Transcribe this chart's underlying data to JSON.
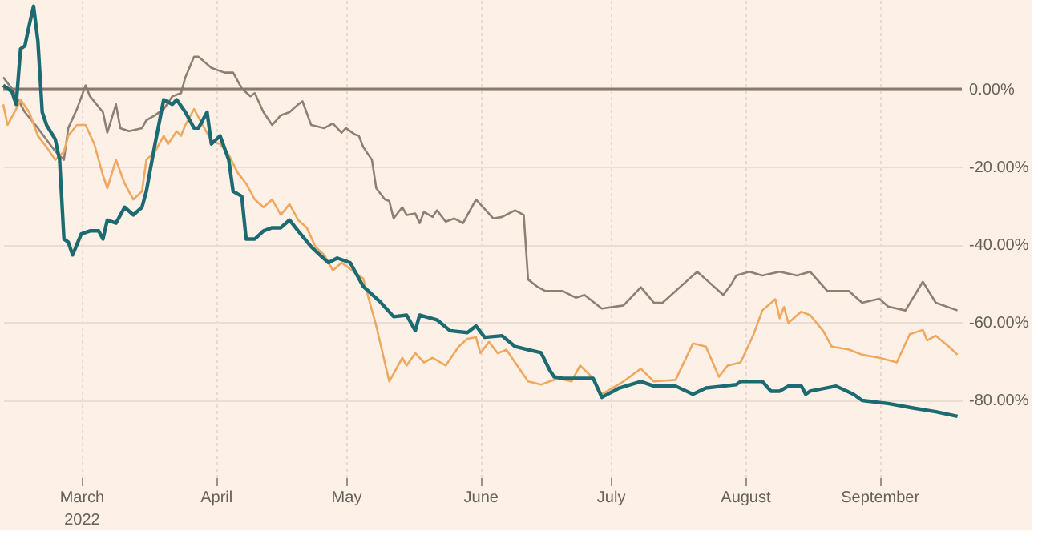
{
  "chart_data": {
    "type": "line",
    "xlim": [
      "2022-02-11",
      "2022-09-20"
    ],
    "xticks": [
      {
        "value": "2022-03-01",
        "label": "March 2022"
      },
      {
        "value": "2022-04-01",
        "label": "April"
      },
      {
        "value": "2022-05-01",
        "label": "May"
      },
      {
        "value": "2022-06-01",
        "label": "June"
      },
      {
        "value": "2022-07-01",
        "label": "July"
      },
      {
        "value": "2022-08-01",
        "label": "August"
      },
      {
        "value": "2022-09-01",
        "label": "September"
      }
    ],
    "ylim": [
      -100,
      23
    ],
    "yticks": [
      {
        "value": 0,
        "label": "0.00%"
      },
      {
        "value": -20,
        "label": "-20.00%"
      },
      {
        "value": -40,
        "label": "-40.00%"
      },
      {
        "value": -60,
        "label": "-60.00%"
      },
      {
        "value": -80,
        "label": "-80.00%"
      }
    ],
    "grid": true,
    "legend": false,
    "marker": "none",
    "line_style": "solid",
    "ref_lines": [
      {
        "axis": "y",
        "value": 0,
        "color": "#8a7a6e"
      }
    ],
    "series": [
      {
        "color": "#8f7f72",
        "x": [
          "2022-02-11",
          "2022-02-13",
          "2022-02-14",
          "2022-02-16",
          "2022-02-19",
          "2022-02-23",
          "2022-02-25",
          "2022-02-26",
          "2022-02-28",
          "2022-03-02",
          "2022-03-03",
          "2022-03-06",
          "2022-03-07",
          "2022-03-09",
          "2022-03-10",
          "2022-03-12",
          "2022-03-15",
          "2022-03-16",
          "2022-03-18",
          "2022-03-20",
          "2022-03-22",
          "2022-03-24",
          "2022-03-25",
          "2022-03-27",
          "2022-03-28",
          "2022-03-31",
          "2022-04-03",
          "2022-04-05",
          "2022-04-07",
          "2022-04-09",
          "2022-04-10",
          "2022-04-12",
          "2022-04-14",
          "2022-04-16",
          "2022-04-18",
          "2022-04-20",
          "2022-04-21",
          "2022-04-23",
          "2022-04-26",
          "2022-04-28",
          "2022-04-30",
          "2022-05-01",
          "2022-05-03",
          "2022-05-04",
          "2022-05-05",
          "2022-05-07",
          "2022-05-08",
          "2022-05-10",
          "2022-05-11",
          "2022-05-12",
          "2022-05-14",
          "2022-05-15",
          "2022-05-17",
          "2022-05-18",
          "2022-05-19",
          "2022-05-21",
          "2022-05-22",
          "2022-05-24",
          "2022-05-26",
          "2022-05-28",
          "2022-05-31",
          "2022-06-04",
          "2022-06-06",
          "2022-06-09",
          "2022-06-11",
          "2022-06-12",
          "2022-06-14",
          "2022-06-16",
          "2022-06-20",
          "2022-06-23",
          "2022-06-25",
          "2022-06-29",
          "2022-07-04",
          "2022-07-08",
          "2022-07-11",
          "2022-07-13",
          "2022-07-19",
          "2022-07-21",
          "2022-07-23",
          "2022-07-27",
          "2022-07-29",
          "2022-07-30",
          "2022-08-02",
          "2022-08-05",
          "2022-08-09",
          "2022-08-13",
          "2022-08-16",
          "2022-08-20",
          "2022-08-25",
          "2022-08-28",
          "2022-09-01",
          "2022-09-03",
          "2022-09-07",
          "2022-09-11",
          "2022-09-14",
          "2022-09-19"
        ],
        "values": [
          3.1,
          0.2,
          -1.8,
          -5.9,
          -10,
          -16,
          -18.2,
          -10,
          -5.1,
          1,
          -1.8,
          -5.9,
          -11.2,
          -3.9,
          -10,
          -10.8,
          -10,
          -8,
          -6.7,
          -5.1,
          -1.8,
          -1,
          3.1,
          8.4,
          8.4,
          5.5,
          4.3,
          4.3,
          0.2,
          -1.8,
          -1,
          -5.9,
          -9.2,
          -6.7,
          -5.9,
          -3.9,
          -3.1,
          -9.2,
          -10,
          -8.8,
          -11.2,
          -10,
          -11.6,
          -12,
          -14.9,
          -18.2,
          -25.5,
          -28.4,
          -28.8,
          -33.3,
          -30.4,
          -32.4,
          -32,
          -34.5,
          -31.6,
          -32.9,
          -31.2,
          -34.1,
          -33.3,
          -34.5,
          -28.4,
          -33.3,
          -32.9,
          -31.2,
          -32.4,
          -49,
          -50.8,
          -52,
          -52,
          -53.7,
          -53,
          -56.5,
          -55.7,
          -51,
          -55,
          -55,
          -49,
          -47,
          -49,
          -53,
          -50,
          -48,
          -47,
          -48,
          -47,
          -48,
          -47,
          -52,
          -52,
          -55,
          -54,
          -56,
          -57,
          -49.6,
          -55,
          -57
        ]
      },
      {
        "color": "#f0a75e",
        "x": [
          "2022-02-11",
          "2022-02-12",
          "2022-02-14",
          "2022-02-15",
          "2022-02-17",
          "2022-02-19",
          "2022-02-21",
          "2022-02-23",
          "2022-02-25",
          "2022-02-26",
          "2022-02-28",
          "2022-03-02",
          "2022-03-04",
          "2022-03-06",
          "2022-03-07",
          "2022-03-09",
          "2022-03-11",
          "2022-03-13",
          "2022-03-15",
          "2022-03-16",
          "2022-03-18",
          "2022-03-20",
          "2022-03-21",
          "2022-03-23",
          "2022-03-24",
          "2022-03-25",
          "2022-03-27",
          "2022-03-29",
          "2022-03-31",
          "2022-04-02",
          "2022-04-04",
          "2022-04-06",
          "2022-04-08",
          "2022-04-10",
          "2022-04-12",
          "2022-04-14",
          "2022-04-16",
          "2022-04-18",
          "2022-04-20",
          "2022-04-22",
          "2022-04-24",
          "2022-04-26",
          "2022-04-28",
          "2022-04-30",
          "2022-05-05",
          "2022-05-08",
          "2022-05-11",
          "2022-05-14",
          "2022-05-15",
          "2022-05-17",
          "2022-05-19",
          "2022-05-21",
          "2022-05-24",
          "2022-05-27",
          "2022-05-29",
          "2022-05-31",
          "2022-06-01",
          "2022-06-03",
          "2022-06-05",
          "2022-06-07",
          "2022-06-09",
          "2022-06-12",
          "2022-06-15",
          "2022-06-17",
          "2022-06-19",
          "2022-06-22",
          "2022-06-24",
          "2022-06-27",
          "2022-06-29",
          "2022-07-04",
          "2022-07-08",
          "2022-07-11",
          "2022-07-16",
          "2022-07-20",
          "2022-07-23",
          "2022-07-26",
          "2022-07-28",
          "2022-07-31",
          "2022-08-03",
          "2022-08-05",
          "2022-08-08",
          "2022-08-09",
          "2022-08-10",
          "2022-08-11",
          "2022-08-14",
          "2022-08-16",
          "2022-08-19",
          "2022-08-21",
          "2022-08-25",
          "2022-08-28",
          "2022-09-01",
          "2022-09-05",
          "2022-09-08",
          "2022-09-11",
          "2022-09-12",
          "2022-09-14",
          "2022-09-17",
          "2022-09-19"
        ],
        "values": [
          -3.9,
          -9.2,
          -5.1,
          -2.7,
          -5.9,
          -12,
          -14.9,
          -18.2,
          -16.1,
          -12,
          -9.2,
          -9.2,
          -14.1,
          -22.2,
          -25.5,
          -18.2,
          -24.3,
          -28.4,
          -26.3,
          -18.2,
          -16.1,
          -12,
          -14.1,
          -10.8,
          -12,
          -9.2,
          -5.1,
          -9.2,
          -13.3,
          -14.1,
          -16.9,
          -21.4,
          -24.3,
          -28.4,
          -30.4,
          -28.4,
          -32.4,
          -29.6,
          -33.7,
          -35.7,
          -40.6,
          -42.7,
          -46.7,
          -44.7,
          -48.8,
          -61,
          -75.3,
          -69.2,
          -71.2,
          -68,
          -70.4,
          -69.2,
          -71.2,
          -66.3,
          -64.3,
          -63.9,
          -68,
          -65.1,
          -68,
          -67.1,
          -70.4,
          -75.3,
          -76.1,
          -75.3,
          -74.5,
          -75.3,
          -71.2,
          -74.5,
          -78.6,
          -75.3,
          -72,
          -75.3,
          -74.9,
          -65.5,
          -66.3,
          -74.1,
          -71.2,
          -70.4,
          -63.1,
          -57,
          -54.1,
          -59,
          -56.1,
          -60.2,
          -57.3,
          -58.2,
          -62.2,
          -66.3,
          -67.1,
          -68.4,
          -69.2,
          -70.4,
          -63.1,
          -62,
          -64.7,
          -63.5,
          -66.3,
          -68.4
        ]
      },
      {
        "color": "#1d6b72",
        "x": [
          "2022-02-11",
          "2022-02-13",
          "2022-02-14",
          "2022-02-15",
          "2022-02-16",
          "2022-02-17",
          "2022-02-18",
          "2022-02-19",
          "2022-02-20",
          "2022-02-21",
          "2022-02-23",
          "2022-02-24",
          "2022-02-25",
          "2022-02-26",
          "2022-02-27",
          "2022-03-01",
          "2022-03-03",
          "2022-03-05",
          "2022-03-06",
          "2022-03-07",
          "2022-03-09",
          "2022-03-11",
          "2022-03-13",
          "2022-03-15",
          "2022-03-16",
          "2022-03-18",
          "2022-03-20",
          "2022-03-22",
          "2022-03-23",
          "2022-03-25",
          "2022-03-27",
          "2022-03-28",
          "2022-03-30",
          "2022-03-31",
          "2022-04-02",
          "2022-04-04",
          "2022-04-05",
          "2022-04-07",
          "2022-04-08",
          "2022-04-10",
          "2022-04-12",
          "2022-04-14",
          "2022-04-16",
          "2022-04-18",
          "2022-04-20",
          "2022-04-23",
          "2022-04-25",
          "2022-04-27",
          "2022-04-29",
          "2022-05-02",
          "2022-05-05",
          "2022-05-09",
          "2022-05-12",
          "2022-05-15",
          "2022-05-17",
          "2022-05-18",
          "2022-05-22",
          "2022-05-25",
          "2022-05-29",
          "2022-05-31",
          "2022-06-02",
          "2022-06-06",
          "2022-06-09",
          "2022-06-12",
          "2022-06-15",
          "2022-06-17",
          "2022-06-18",
          "2022-06-20",
          "2022-06-27",
          "2022-06-29",
          "2022-07-03",
          "2022-07-08",
          "2022-07-11",
          "2022-07-16",
          "2022-07-20",
          "2022-07-23",
          "2022-07-27",
          "2022-07-30",
          "2022-07-31",
          "2022-08-05",
          "2022-08-07",
          "2022-08-09",
          "2022-08-11",
          "2022-08-14",
          "2022-08-15",
          "2022-08-16",
          "2022-08-22",
          "2022-08-26",
          "2022-08-28",
          "2022-09-03",
          "2022-09-09",
          "2022-09-14",
          "2022-09-19"
        ],
        "values": [
          1,
          -0.6,
          -3.9,
          10.4,
          11.2,
          16.5,
          21.4,
          12.4,
          -5.9,
          -9.2,
          -12.9,
          -18.2,
          -38.6,
          -39.4,
          -42.7,
          -37.3,
          -36.5,
          -36.5,
          -38.6,
          -33.7,
          -34.5,
          -30.4,
          -32.4,
          -30.4,
          -26.3,
          -14.1,
          -2.7,
          -3.9,
          -2.7,
          -5.9,
          -10,
          -10,
          -5.9,
          -14.1,
          -12,
          -18.2,
          -26.3,
          -27.6,
          -38.6,
          -38.6,
          -36.5,
          -35.7,
          -35.7,
          -33.7,
          -36.5,
          -40.6,
          -42.7,
          -44.7,
          -43.5,
          -44.7,
          -50.8,
          -54.9,
          -58.6,
          -58.2,
          -62.2,
          -58.2,
          -59.4,
          -62.2,
          -62.7,
          -61,
          -63.9,
          -63.5,
          -66.3,
          -67.1,
          -67.9,
          -72.4,
          -74.1,
          -74.5,
          -74.5,
          -79.4,
          -77,
          -75.3,
          -76.5,
          -76.5,
          -78.6,
          -77,
          -76.5,
          -76.1,
          -75.3,
          -75.3,
          -77.8,
          -77.8,
          -76.5,
          -76.5,
          -78.6,
          -77.8,
          -76.5,
          -78.6,
          -80.2,
          -81,
          -82.2,
          -83.1,
          -84.3
        ]
      }
    ]
  }
}
